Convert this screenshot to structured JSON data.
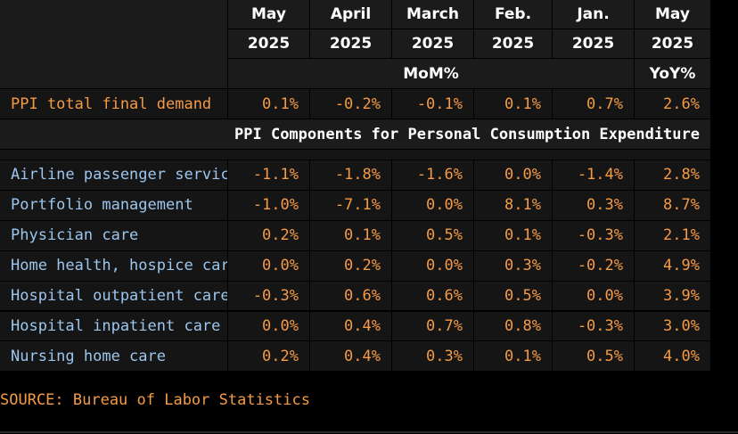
{
  "chart_data": {
    "type": "table",
    "columns": [
      {
        "month": "May",
        "year": "2025"
      },
      {
        "month": "April",
        "year": "2025"
      },
      {
        "month": "March",
        "year": "2025"
      },
      {
        "month": "Feb.",
        "year": "2025"
      },
      {
        "month": "Jan.",
        "year": "2025"
      },
      {
        "month": "May",
        "year": "2025"
      }
    ],
    "mom_label": "MoM%",
    "yoy_label": "YoY%",
    "headline": {
      "label": "PPI total final demand",
      "values": [
        "0.1%",
        "-0.2%",
        "-0.1%",
        "0.1%",
        "0.7%",
        "2.6%"
      ]
    },
    "section_title": "PPI Components for Personal Consumption Expenditure",
    "rows": [
      {
        "label": "Airline passenger services",
        "values": [
          "-1.1%",
          "-1.8%",
          "-1.6%",
          "0.0%",
          "-1.4%",
          "2.8%"
        ]
      },
      {
        "label": "Portfolio management",
        "values": [
          "-1.0%",
          "-7.1%",
          "0.0%",
          "8.1%",
          "0.3%",
          "8.7%"
        ]
      },
      {
        "label": "Physician care",
        "values": [
          "0.2%",
          "0.1%",
          "0.5%",
          "0.1%",
          "-0.3%",
          "2.1%"
        ]
      },
      {
        "label": "Home health, hospice care",
        "values": [
          "0.0%",
          "0.2%",
          "0.0%",
          "0.3%",
          "-0.2%",
          "4.9%"
        ]
      },
      {
        "label": "Hospital outpatient care",
        "values": [
          "-0.3%",
          "0.6%",
          "0.6%",
          "0.5%",
          "0.0%",
          "3.9%"
        ]
      },
      {
        "label": "Hospital inpatient care",
        "values": [
          "0.0%",
          "0.4%",
          "0.7%",
          "0.8%",
          "-0.3%",
          "3.0%"
        ]
      },
      {
        "label": "Nursing home care",
        "values": [
          "0.2%",
          "0.4%",
          "0.3%",
          "0.1%",
          "0.5%",
          "4.0%"
        ]
      }
    ],
    "source": "SOURCE: Bureau of Labor Statistics",
    "colors": {
      "background": "#000000",
      "header_bg": "#1b1b1b",
      "row_bg": "#151515",
      "value": "#f59a45",
      "label_blue": "#9cc6ee",
      "grid": "#3a3a3a"
    }
  }
}
